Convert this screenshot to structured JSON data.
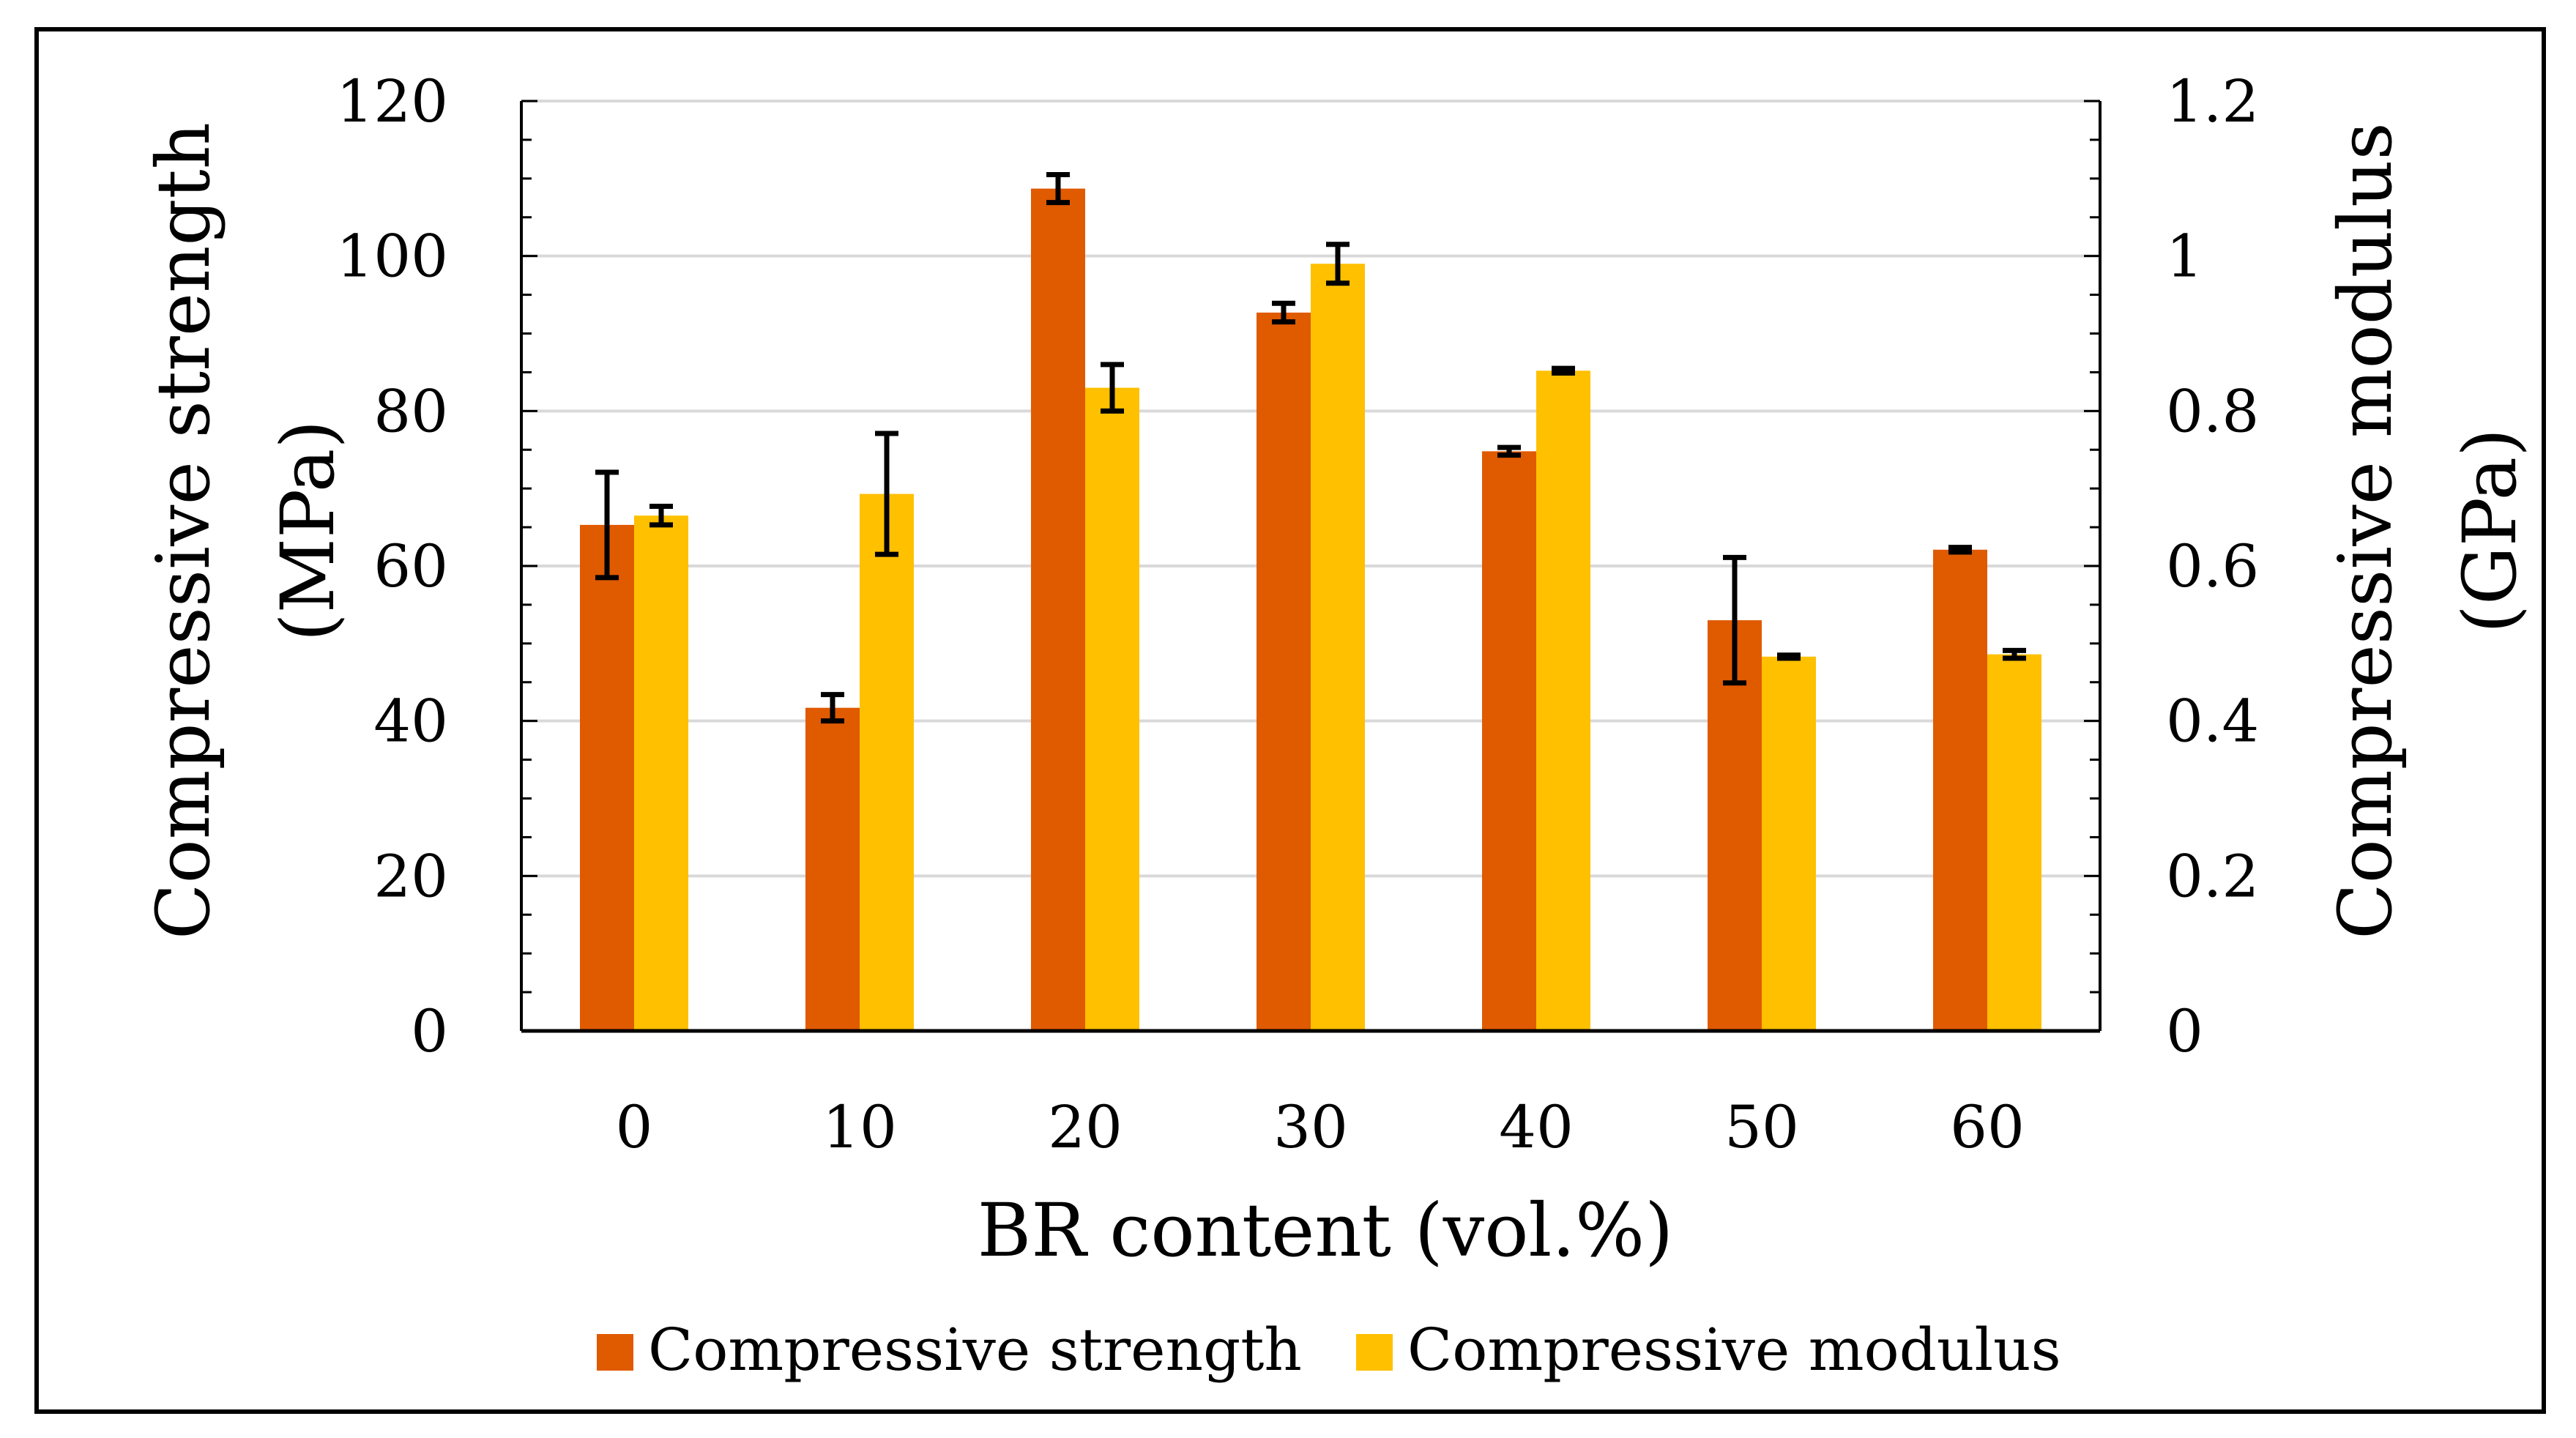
{
  "chart_data": {
    "type": "bar",
    "xlabel": "BR content (vol.%)",
    "categories": [
      "0",
      "10",
      "20",
      "30",
      "40",
      "50",
      "60"
    ],
    "y_left": {
      "label_line1": "Compressive strength",
      "label_line2": "(MPa)",
      "ylim": [
        0,
        120
      ],
      "ticks": [
        "0",
        "20",
        "40",
        "60",
        "80",
        "100",
        "120"
      ],
      "tick_values": [
        0,
        20,
        40,
        60,
        80,
        100,
        120
      ]
    },
    "y_right": {
      "label_line1": "Compressive modulus",
      "label_line2": "(GPa)",
      "ylim": [
        0,
        1.2
      ],
      "ticks": [
        "0",
        "0.2",
        "0.4",
        "0.6",
        "0.8",
        "1",
        "1.2"
      ],
      "tick_values": [
        0,
        0.2,
        0.4,
        0.6,
        0.8,
        1.0,
        1.2
      ]
    },
    "series": [
      {
        "name": "Compressive strength",
        "axis": "left",
        "color": "#e05a00",
        "values": [
          65.3,
          41.7,
          108.7,
          92.7,
          74.8,
          53.0,
          62.1
        ],
        "errors": [
          6.8,
          1.7,
          1.8,
          1.2,
          0.5,
          8.1,
          0.3
        ]
      },
      {
        "name": "Compressive modulus",
        "axis": "right",
        "color": "#ffc000",
        "values": [
          0.665,
          0.693,
          0.83,
          0.99,
          0.852,
          0.483,
          0.486
        ],
        "errors": [
          0.012,
          0.078,
          0.03,
          0.025,
          0.003,
          0.002,
          0.005
        ]
      }
    ],
    "grid": true,
    "legend_position": "bottom"
  }
}
